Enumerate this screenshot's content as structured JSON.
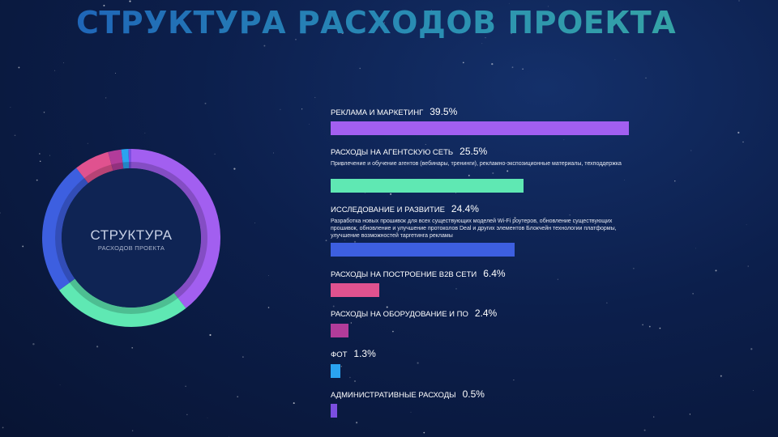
{
  "title": "СТРУКТУРА РАСХОДОВ ПРОЕКТА",
  "donut_center": {
    "title": "СТРУКТУРА",
    "subtitle": "РАСХОДОВ ПРОЕКТА"
  },
  "chart_data": {
    "type": "bar",
    "categories": [
      "РЕКЛАМА И МАРКЕТИНГ",
      "РАСХОДЫ НА АГЕНТСКУЮ СЕТЬ",
      "ИССЛЕДОВАНИЕ И РАЗВИТИЕ",
      "РАСХОДЫ НА ПОСТРОЕНИЕ B2B СЕТИ",
      "РАСХОДЫ НА ОБОРУДОВАНИЕ И ПО",
      "ФОТ",
      "АДМИНИСТРАТИВНЫЕ РАСХОДЫ"
    ],
    "values": [
      39.5,
      25.5,
      24.4,
      6.4,
      2.4,
      1.3,
      0.5
    ],
    "value_labels": [
      "39.5%",
      "25.5%",
      "24.4%",
      "6.4%",
      "2.4%",
      "1.3%",
      "0.5%"
    ],
    "descriptions": [
      "",
      "Привлечение и обучение агентов (вебинары, тренинги), рекламно-экспозиционные материалы, техподдержка",
      "Разработка новых прошивок для всех существующих моделей Wi-Fi роутеров, обновление существующих прошивок, обновление и улучшение протоколов Deal и других элементов Блокчейн технологии платформы, улучшение возможностей таргетинга рекламы",
      "",
      "",
      "",
      ""
    ],
    "colors": [
      "#a25ff0",
      "#5fe8b3",
      "#3d5fe0",
      "#e0528f",
      "#b23c9a",
      "#2aa3f0",
      "#7b4fe0"
    ],
    "unit": "%",
    "donut": true
  }
}
